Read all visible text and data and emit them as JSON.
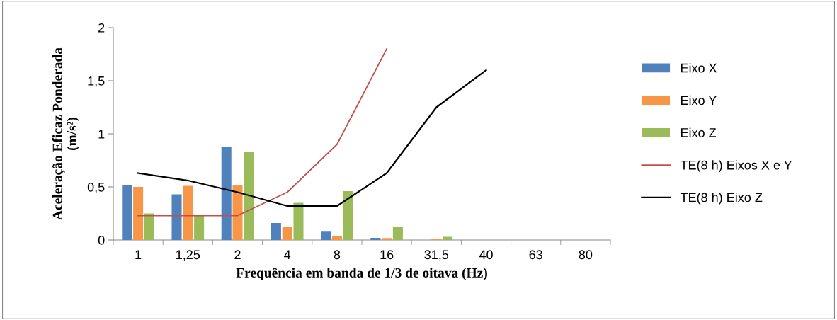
{
  "chart_data": {
    "type": "bar",
    "xlabel": "Frequência em banda de 1/3 de oitava (Hz)",
    "ylabel": "Aceleração Eficaz Ponderada\n(m/s²)",
    "categories": [
      "1",
      "1,25",
      "2",
      "4",
      "8",
      "16",
      "31,5",
      "40",
      "63",
      "80"
    ],
    "series": [
      {
        "name": "Eixo X",
        "color": "#4f81bd",
        "values": [
          0.52,
          0.43,
          0.88,
          0.16,
          0.085,
          0.02,
          null,
          0,
          0,
          0
        ]
      },
      {
        "name": "Eixo Y",
        "color": "#f79646",
        "values": [
          0.5,
          0.51,
          0.52,
          0.12,
          0.035,
          0.018,
          0.01,
          0,
          0,
          0
        ]
      },
      {
        "name": "Eixo Z",
        "color": "#9bbb59",
        "values": [
          0.25,
          0.23,
          0.83,
          0.35,
          0.46,
          0.12,
          0.03,
          0,
          0,
          0
        ]
      },
      {
        "name": "TE(8 h) Eixos X e Y",
        "type": "line",
        "color": "#c0504d",
        "values": [
          0.23,
          0.23,
          0.23,
          0.45,
          0.9,
          1.8,
          null,
          null,
          null,
          null
        ]
      },
      {
        "name": "TE(8 h) Eixo Z",
        "type": "line",
        "color": "#000000",
        "values": [
          0.63,
          0.56,
          0.45,
          0.32,
          0.32,
          0.63,
          1.25,
          1.6,
          null,
          null
        ]
      }
    ],
    "ylim": [
      0,
      2
    ],
    "yticks": [
      0,
      {
        "value": 0.5,
        "label": "0,5"
      },
      1,
      {
        "value": 1.5,
        "label": "1,5"
      },
      2
    ],
    "grid": false,
    "legend": "right"
  }
}
